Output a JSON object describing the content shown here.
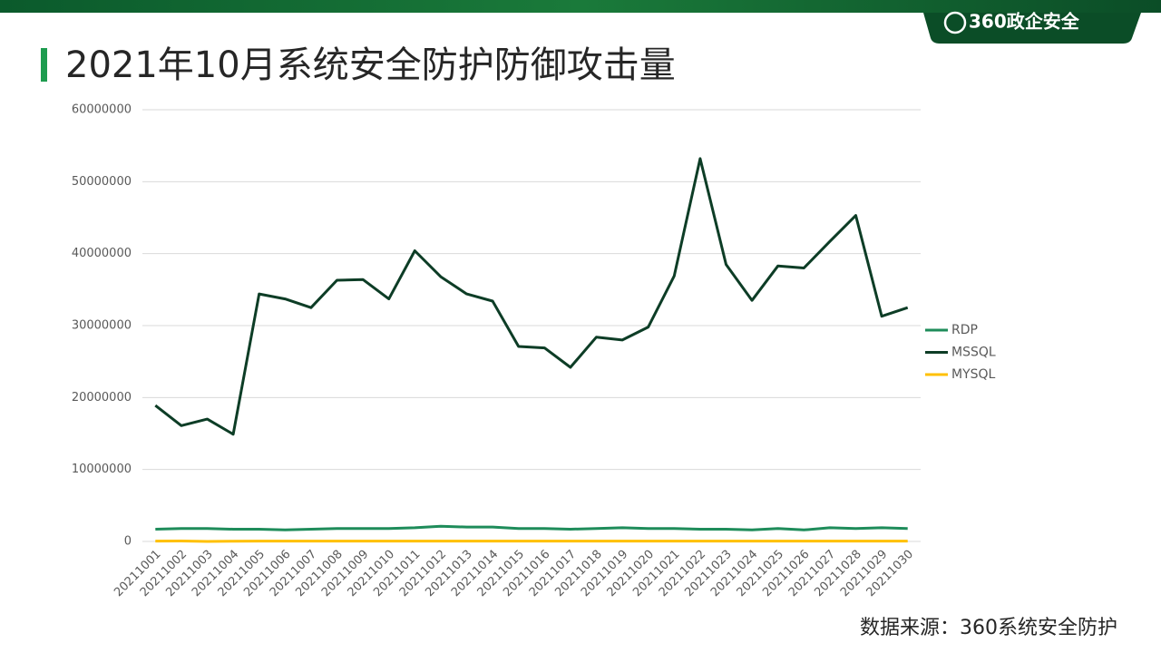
{
  "logo": "360政企安全",
  "source": "数据来源：360系统安全防护",
  "chart_data": {
    "type": "line",
    "title": "2021年10月系统安全防护防御攻击量",
    "categories": [
      "20211001",
      "20211002",
      "20211003",
      "20211004",
      "20211005",
      "20211006",
      "20211007",
      "20211008",
      "20211009",
      "20211010",
      "20211011",
      "20211012",
      "20211013",
      "20211014",
      "20211015",
      "20211016",
      "20211017",
      "20211018",
      "20211019",
      "20211020",
      "20211021",
      "20211022",
      "20211023",
      "20211024",
      "20211025",
      "20211026",
      "20211027",
      "20211028",
      "20211029",
      "20211030"
    ],
    "series": [
      {
        "name": "RDP",
        "color": "#1e8c5a",
        "values": [
          1700000,
          1800000,
          1800000,
          1700000,
          1700000,
          1600000,
          1700000,
          1800000,
          1800000,
          1800000,
          1900000,
          2100000,
          2000000,
          2000000,
          1800000,
          1800000,
          1700000,
          1800000,
          1900000,
          1800000,
          1800000,
          1700000,
          1700000,
          1600000,
          1800000,
          1600000,
          1900000,
          1800000,
          1900000,
          1800000
        ]
      },
      {
        "name": "MSSQL",
        "color": "#0d3d26",
        "values": [
          18900000,
          16100000,
          17000000,
          14900000,
          34400000,
          33700000,
          32500000,
          36300000,
          36400000,
          33700000,
          40400000,
          36800000,
          34400000,
          33400000,
          27100000,
          26900000,
          24200000,
          28400000,
          28000000,
          29800000,
          36900000,
          53200000,
          38500000,
          33500000,
          38300000,
          38000000,
          41700000,
          45300000,
          31300000,
          32500000
        ]
      },
      {
        "name": "MYSQL",
        "color": "#ffc000",
        "values": [
          50000,
          60000,
          0,
          40000,
          50000,
          50000,
          50000,
          50000,
          50000,
          50000,
          50000,
          50000,
          50000,
          50000,
          50000,
          50000,
          50000,
          50000,
          50000,
          50000,
          50000,
          50000,
          50000,
          50000,
          50000,
          50000,
          50000,
          50000,
          50000,
          50000
        ]
      }
    ],
    "ylim": [
      0,
      60000000
    ],
    "yticks": [
      0,
      10000000,
      20000000,
      30000000,
      40000000,
      50000000,
      60000000
    ],
    "grid": true,
    "legend": "right"
  }
}
